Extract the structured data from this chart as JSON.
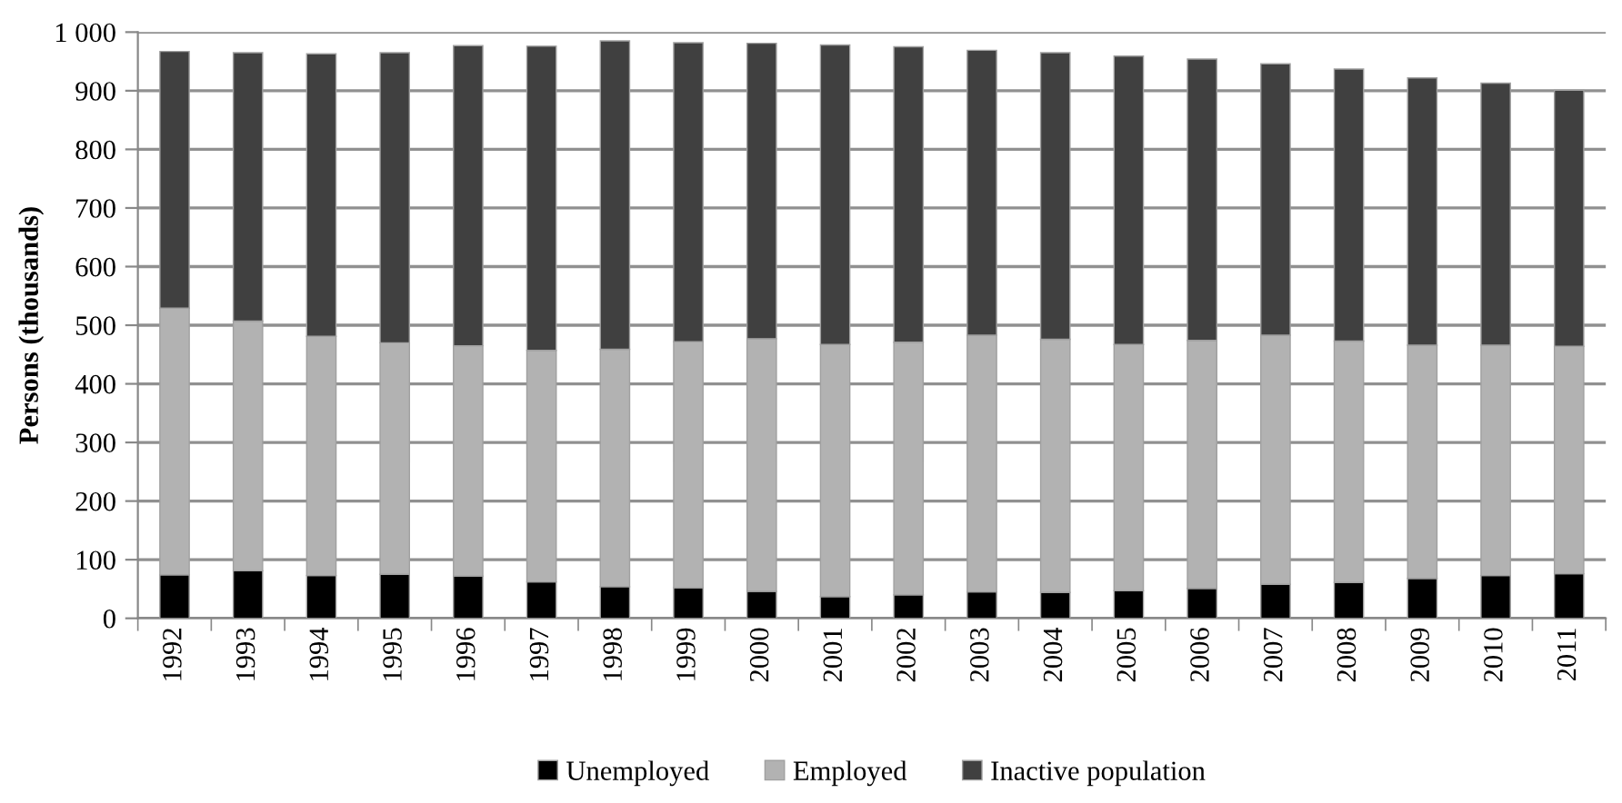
{
  "chart_data": {
    "type": "bar",
    "stacked": true,
    "ylabel": "Persons (thousands)",
    "categories": [
      "1992",
      "1993",
      "1994",
      "1995",
      "1996",
      "1997",
      "1998",
      "1999",
      "2000",
      "2001",
      "2002",
      "2003",
      "2004",
      "2005",
      "2006",
      "2007",
      "2008",
      "2009",
      "2010",
      "2011"
    ],
    "series": [
      {
        "name": "Unemployed",
        "color": "#000000",
        "values": [
          74,
          81,
          73,
          75,
          72,
          62,
          54,
          52,
          46,
          37,
          40,
          45,
          44,
          47,
          51,
          58,
          61,
          68,
          73,
          76
        ]
      },
      {
        "name": "Employed",
        "color": "#b2b2b2",
        "values": [
          455,
          426,
          408,
          395,
          393,
          395,
          405,
          420,
          431,
          430,
          431,
          438,
          432,
          420,
          423,
          425,
          412,
          398,
          393,
          388
        ]
      },
      {
        "name": "Inactive population",
        "color": "#404040",
        "values": [
          438,
          458,
          482,
          495,
          512,
          519,
          526,
          510,
          504,
          511,
          504,
          486,
          489,
          492,
          480,
          463,
          464,
          456,
          447,
          437
        ]
      }
    ],
    "ylim": [
      0,
      1000
    ],
    "yticks": [
      0,
      100,
      200,
      300,
      400,
      500,
      600,
      700,
      800,
      900,
      {
        "value": 1000,
        "label": "1 000"
      }
    ],
    "grid": "y",
    "legend": "bottom"
  }
}
